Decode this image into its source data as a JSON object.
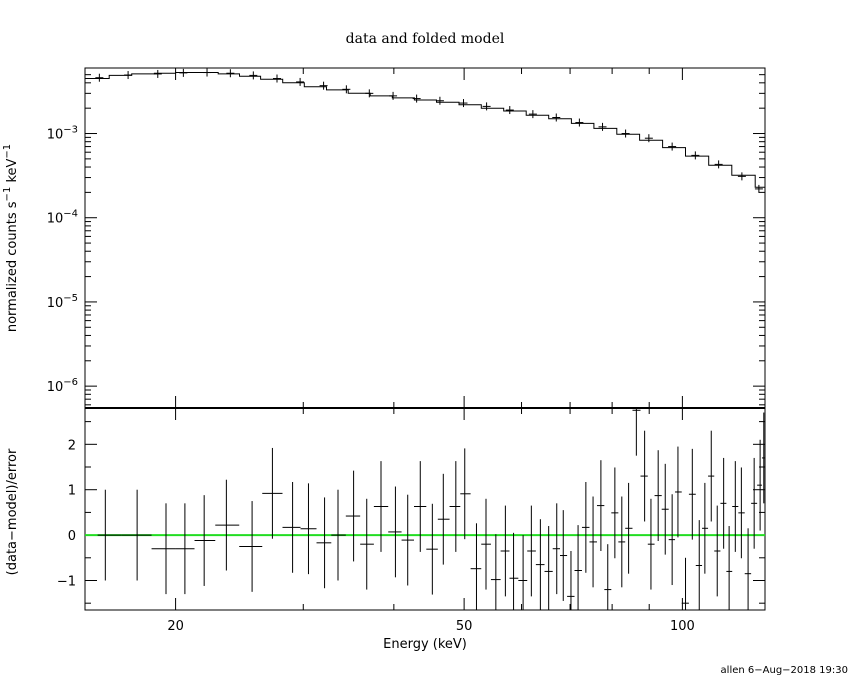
{
  "chart_data": [
    {
      "type": "line",
      "title": "data and folded model",
      "ylabel_main": "normalized counts s",
      "ylabel_exp1": "−1",
      "ylabel_mid": " keV",
      "ylabel_exp2": "−1",
      "xscale": "log",
      "yscale": "log",
      "xlim": [
        15,
        130
      ],
      "ylim": [
        5.5e-07,
        0.006
      ],
      "yticks": [
        {
          "value": 0.001,
          "base": "10",
          "exp": "−3"
        },
        {
          "value": 0.0001,
          "base": "10",
          "exp": "−4"
        },
        {
          "value": 1e-05,
          "base": "10",
          "exp": "−5"
        },
        {
          "value": 1e-06,
          "base": "10",
          "exp": "−6"
        }
      ],
      "model": {
        "x": [
          15.0,
          16.2,
          17.4,
          18.7,
          20.0,
          21.4,
          22.9,
          24.5,
          26.2,
          28.1,
          30.1,
          32.3,
          34.6,
          37.1,
          39.8,
          42.7,
          45.8,
          49.2,
          52.8,
          56.7,
          60.9,
          65.4,
          70.3,
          75.5,
          81.2,
          87.3,
          93.9,
          101.0,
          108.7,
          117.0,
          126.0,
          130.0
        ],
        "y": [
          0.0045,
          0.0049,
          0.0051,
          0.0052,
          0.0053,
          0.0053,
          0.0051,
          0.0048,
          0.0044,
          0.004,
          0.0036,
          0.0033,
          0.003,
          0.0028,
          0.00265,
          0.0025,
          0.00235,
          0.0022,
          0.002,
          0.00185,
          0.00165,
          0.0015,
          0.00132,
          0.00115,
          0.00098,
          0.00083,
          0.00068,
          0.00054,
          0.00042,
          0.00032,
          0.00023,
          0.00018
        ]
      },
      "points": {
        "x": [
          15.7,
          17.2,
          18.9,
          20.5,
          22.1,
          23.8,
          25.6,
          27.6,
          29.7,
          32.0,
          34.4,
          37.0,
          39.9,
          43.0,
          46.3,
          49.9,
          53.7,
          57.8,
          62.2,
          67.0,
          72.1,
          77.6,
          83.5,
          89.9,
          96.8,
          104.2,
          112.2,
          120.8,
          127.5
        ],
        "y": [
          0.0046,
          0.00495,
          0.0051,
          0.00525,
          0.0053,
          0.0052,
          0.0049,
          0.0045,
          0.0041,
          0.0037,
          0.00335,
          0.003,
          0.0028,
          0.0026,
          0.00245,
          0.0023,
          0.0021,
          0.0019,
          0.0017,
          0.00155,
          0.00135,
          0.0012,
          0.001,
          0.00088,
          0.0007,
          0.00055,
          0.00043,
          0.00031,
          0.00022
        ]
      }
    },
    {
      "type": "scatter",
      "ylabel": "(data−model)/error",
      "xlabel": "Energy (keV)",
      "xscale": "log",
      "xlim": [
        15,
        130
      ],
      "ylim": [
        -1.65,
        2.8
      ],
      "yticks": [
        "2",
        "1",
        "0",
        "−1"
      ],
      "ytick_values": [
        2,
        1,
        0,
        -1
      ],
      "xticks": [
        "20",
        "50",
        "100"
      ],
      "xtick_values": [
        20,
        50,
        100
      ],
      "zero_line_color": "#22dd22",
      "residuals": {
        "x": [
          16.0,
          17.7,
          19.4,
          20.6,
          21.9,
          23.5,
          25.5,
          27.2,
          29.0,
          30.5,
          32.1,
          33.5,
          35.2,
          36.7,
          38.4,
          40.2,
          41.8,
          43.5,
          45.2,
          46.8,
          48.7,
          50.1,
          52.0,
          53.6,
          55.3,
          57.0,
          58.5,
          60.3,
          61.9,
          63.7,
          65.4,
          67.1,
          68.5,
          70.2,
          71.8,
          73.6,
          75.3,
          77.2,
          78.9,
          80.7,
          82.5,
          84.3,
          86.4,
          88.7,
          90.5,
          92.6,
          94.7,
          96.8,
          98.6,
          101.0,
          103.2,
          105.5,
          107.4,
          109.6,
          111.7,
          114.0,
          116.0,
          118.3,
          120.6,
          123.2,
          125.6,
          128.0,
          129.5
        ],
        "y": [
          0.0,
          0.0,
          -0.3,
          -0.3,
          -0.12,
          0.22,
          -0.25,
          0.92,
          0.17,
          0.14,
          -0.17,
          0.0,
          0.42,
          -0.2,
          0.63,
          0.07,
          -0.11,
          0.63,
          -0.31,
          0.35,
          0.63,
          0.91,
          -0.74,
          -0.2,
          -0.98,
          -0.35,
          -0.95,
          -1.0,
          -0.35,
          -0.65,
          -0.8,
          -0.3,
          -0.45,
          -1.35,
          -0.78,
          0.17,
          -0.15,
          0.65,
          -1.2,
          0.49,
          -0.15,
          0.15,
          2.75,
          1.3,
          -0.2,
          0.87,
          0.57,
          -0.1,
          0.95,
          -1.5,
          0.9,
          -0.67,
          0.15,
          1.3,
          -0.35,
          0.7,
          -0.8,
          0.63,
          0.49,
          -0.85,
          0.7,
          1.1,
          1.7
        ],
        "err": [
          1.0,
          1.0,
          1.0,
          1.0,
          1.0,
          1.0,
          1.0,
          1.0,
          1.0,
          1.0,
          1.0,
          1.0,
          1.0,
          1.0,
          1.0,
          1.0,
          1.0,
          1.0,
          1.0,
          1.0,
          1.0,
          1.0,
          1.0,
          1.0,
          1.0,
          1.0,
          1.0,
          1.0,
          1.0,
          1.0,
          1.0,
          1.0,
          1.0,
          1.0,
          1.0,
          1.0,
          1.0,
          1.0,
          1.0,
          1.0,
          1.0,
          1.0,
          1.0,
          1.0,
          1.0,
          1.0,
          1.0,
          1.0,
          1.0,
          1.0,
          1.0,
          1.0,
          1.0,
          1.0,
          1.0,
          1.0,
          1.0,
          1.0,
          1.0,
          1.0,
          1.0,
          1.0,
          1.0
        ]
      }
    }
  ],
  "footer": "allen  6−Aug−2018 19:30"
}
